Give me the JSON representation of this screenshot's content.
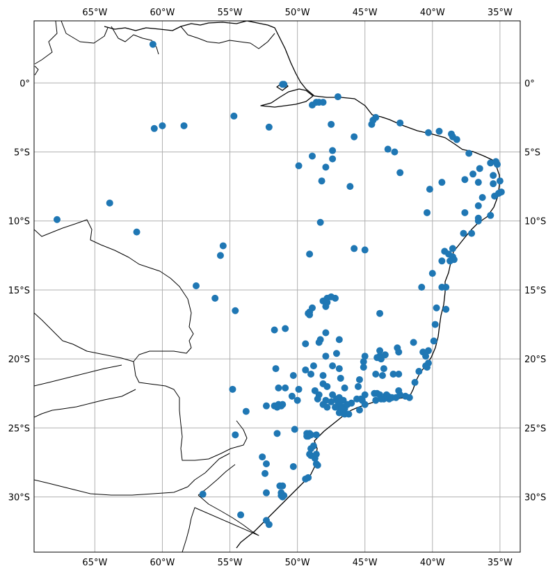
{
  "chart_data": {
    "type": "scatter",
    "projection": "PlateCarree",
    "extent": {
      "lon": [
        -69.5,
        -33.5
      ],
      "lat": [
        -34,
        4.5
      ]
    },
    "gridlines": true,
    "marker_color": "#1f77b4",
    "lon_ticks": [
      {
        "value": -65,
        "label": "65°W"
      },
      {
        "value": -60,
        "label": "60°W"
      },
      {
        "value": -55,
        "label": "55°W"
      },
      {
        "value": -50,
        "label": "50°W"
      },
      {
        "value": -45,
        "label": "45°W"
      },
      {
        "value": -40,
        "label": "40°W"
      },
      {
        "value": -35,
        "label": "35°W"
      }
    ],
    "lat_ticks": [
      {
        "value": 0,
        "label": "0°"
      },
      {
        "value": -5,
        "label": "5°S"
      },
      {
        "value": -10,
        "label": "10°S"
      },
      {
        "value": -15,
        "label": "15°S"
      },
      {
        "value": -20,
        "label": "20°S"
      },
      {
        "value": -25,
        "label": "25°S"
      },
      {
        "value": -30,
        "label": "30°S"
      }
    ],
    "points": [
      [
        -60.7,
        2.8
      ],
      [
        -60.6,
        -3.3
      ],
      [
        -60.0,
        -3.1
      ],
      [
        -58.4,
        -3.1
      ],
      [
        -54.7,
        -2.4
      ],
      [
        -52.1,
        -3.2
      ],
      [
        -51.1,
        -0.1
      ],
      [
        -51.0,
        -0.1
      ],
      [
        -48.9,
        -1.6
      ],
      [
        -48.6,
        -1.4
      ],
      [
        -48.4,
        -1.4
      ],
      [
        -48.1,
        -1.4
      ],
      [
        -47.0,
        -1.0
      ],
      [
        -47.5,
        -3.0
      ],
      [
        -45.8,
        -3.9
      ],
      [
        -44.2,
        -2.5
      ],
      [
        -44.4,
        -2.7
      ],
      [
        -44.5,
        -3.0
      ],
      [
        -42.4,
        -2.9
      ],
      [
        -40.3,
        -3.6
      ],
      [
        -39.5,
        -3.5
      ],
      [
        -38.6,
        -3.7
      ],
      [
        -38.5,
        -3.9
      ],
      [
        -38.2,
        -4.1
      ],
      [
        -43.3,
        -4.8
      ],
      [
        -42.8,
        -5.0
      ],
      [
        -47.4,
        -4.9
      ],
      [
        -47.4,
        -5.5
      ],
      [
        -48.9,
        -5.3
      ],
      [
        -49.9,
        -6.0
      ],
      [
        -47.9,
        -6.1
      ],
      [
        -48.2,
        -7.1
      ],
      [
        -46.1,
        -7.5
      ],
      [
        -42.4,
        -6.5
      ],
      [
        -40.2,
        -7.7
      ],
      [
        -39.3,
        -7.2
      ],
      [
        -37.3,
        -5.1
      ],
      [
        -36.5,
        -6.2
      ],
      [
        -37.0,
        -6.6
      ],
      [
        -36.6,
        -7.2
      ],
      [
        -37.6,
        -7.0
      ],
      [
        -35.7,
        -5.8
      ],
      [
        -35.3,
        -5.7
      ],
      [
        -35.2,
        -5.9
      ],
      [
        -35.5,
        -6.7
      ],
      [
        -35.5,
        -7.3
      ],
      [
        -35.0,
        -7.1
      ],
      [
        -34.9,
        -7.9
      ],
      [
        -35.1,
        -8.0
      ],
      [
        -35.4,
        -8.2
      ],
      [
        -36.3,
        -8.3
      ],
      [
        -36.6,
        -8.9
      ],
      [
        -37.6,
        -9.4
      ],
      [
        -35.7,
        -9.6
      ],
      [
        -36.6,
        -9.8
      ],
      [
        -36.6,
        -10.0
      ],
      [
        -37.1,
        -10.9
      ],
      [
        -37.7,
        -10.9
      ],
      [
        -40.4,
        -9.4
      ],
      [
        -67.8,
        -9.9
      ],
      [
        -63.9,
        -8.7
      ],
      [
        -61.9,
        -10.8
      ],
      [
        -48.3,
        -10.1
      ],
      [
        -45.8,
        -12.0
      ],
      [
        -45.0,
        -12.1
      ],
      [
        -38.5,
        -12.0
      ],
      [
        -38.8,
        -12.4
      ],
      [
        -38.5,
        -12.6
      ],
      [
        -38.4,
        -12.8
      ],
      [
        -38.7,
        -12.9
      ],
      [
        -39.1,
        -12.2
      ],
      [
        -39.3,
        -12.9
      ],
      [
        -55.5,
        -11.8
      ],
      [
        -55.7,
        -12.5
      ],
      [
        -49.1,
        -12.4
      ],
      [
        -57.5,
        -14.7
      ],
      [
        -56.1,
        -15.6
      ],
      [
        -54.6,
        -16.5
      ],
      [
        -40.0,
        -13.8
      ],
      [
        -40.8,
        -14.8
      ],
      [
        -39.3,
        -14.8
      ],
      [
        -39.0,
        -14.8
      ],
      [
        -39.0,
        -16.4
      ],
      [
        -39.7,
        -16.3
      ],
      [
        -47.8,
        -15.6
      ],
      [
        -48.1,
        -15.8
      ],
      [
        -47.5,
        -15.5
      ],
      [
        -47.2,
        -15.6
      ],
      [
        -47.8,
        -15.9
      ],
      [
        -48.9,
        -16.3
      ],
      [
        -49.2,
        -16.7
      ],
      [
        -49.1,
        -16.6
      ],
      [
        -49.1,
        -16.8
      ],
      [
        -47.9,
        -16.2
      ],
      [
        -43.9,
        -16.7
      ],
      [
        -51.7,
        -17.9
      ],
      [
        -50.9,
        -17.8
      ],
      [
        -47.9,
        -18.1
      ],
      [
        -48.3,
        -18.6
      ],
      [
        -48.4,
        -18.8
      ],
      [
        -46.9,
        -18.6
      ],
      [
        -49.4,
        -18.9
      ],
      [
        -39.8,
        -17.5
      ],
      [
        -39.9,
        -18.7
      ],
      [
        -41.4,
        -18.8
      ],
      [
        -40.3,
        -19.4
      ],
      [
        -40.7,
        -19.5
      ],
      [
        -40.5,
        -19.8
      ],
      [
        -40.3,
        -20.3
      ],
      [
        -40.4,
        -20.6
      ],
      [
        -40.5,
        -20.5
      ],
      [
        -42.6,
        -19.2
      ],
      [
        -42.5,
        -19.5
      ],
      [
        -43.9,
        -19.4
      ],
      [
        -43.9,
        -19.8
      ],
      [
        -44.1,
        -19.9
      ],
      [
        -43.8,
        -20.0
      ],
      [
        -43.5,
        -19.7
      ],
      [
        -45.0,
        -19.8
      ],
      [
        -45.1,
        -20.2
      ],
      [
        -47.9,
        -19.8
      ],
      [
        -47.1,
        -19.6
      ],
      [
        -48.8,
        -20.5
      ],
      [
        -47.4,
        -20.5
      ],
      [
        -46.9,
        -20.7
      ],
      [
        -49.4,
        -20.8
      ],
      [
        -51.6,
        -20.7
      ],
      [
        -49.0,
        -21.1
      ],
      [
        -48.1,
        -21.2
      ],
      [
        -48.1,
        -21.8
      ],
      [
        -47.8,
        -22.0
      ],
      [
        -46.8,
        -21.4
      ],
      [
        -45.4,
        -21.5
      ],
      [
        -45.1,
        -20.6
      ],
      [
        -44.2,
        -21.1
      ],
      [
        -42.9,
        -21.1
      ],
      [
        -42.5,
        -21.1
      ],
      [
        -43.7,
        -21.2
      ],
      [
        -43.6,
        -20.7
      ],
      [
        -41.3,
        -21.7
      ],
      [
        -41.0,
        -20.9
      ],
      [
        -45.5,
        -22.0
      ],
      [
        -46.5,
        -22.1
      ],
      [
        -47.4,
        -22.6
      ],
      [
        -47.1,
        -22.9
      ],
      [
        -46.9,
        -22.8
      ],
      [
        -47.0,
        -23.1
      ],
      [
        -46.6,
        -23.0
      ],
      [
        -46.6,
        -23.5
      ],
      [
        -46.5,
        -23.6
      ],
      [
        -46.7,
        -23.5
      ],
      [
        -46.8,
        -23.6
      ],
      [
        -46.9,
        -23.9
      ],
      [
        -46.7,
        -23.9
      ],
      [
        -46.5,
        -24.0
      ],
      [
        -46.2,
        -24.0
      ],
      [
        -46.3,
        -23.3
      ],
      [
        -46.9,
        -23.2
      ],
      [
        -47.2,
        -23.5
      ],
      [
        -47.5,
        -23.1
      ],
      [
        -47.9,
        -23.0
      ],
      [
        -48.4,
        -22.6
      ],
      [
        -48.5,
        -22.9
      ],
      [
        -48.7,
        -22.3
      ],
      [
        -49.9,
        -22.2
      ],
      [
        -50.0,
        -23.0
      ],
      [
        -50.4,
        -22.7
      ],
      [
        -50.9,
        -22.1
      ],
      [
        -51.4,
        -22.1
      ],
      [
        -50.3,
        -21.2
      ],
      [
        -51.7,
        -23.4
      ],
      [
        -51.4,
        -23.3
      ],
      [
        -51.2,
        -23.4
      ],
      [
        -51.1,
        -23.3
      ],
      [
        -51.5,
        -23.5
      ],
      [
        -52.3,
        -23.4
      ],
      [
        -53.8,
        -23.8
      ],
      [
        -54.8,
        -22.2
      ],
      [
        -47.8,
        -23.5
      ],
      [
        -48.1,
        -23.3
      ],
      [
        -46.0,
        -23.2
      ],
      [
        -45.6,
        -22.9
      ],
      [
        -45.3,
        -22.9
      ],
      [
        -45.2,
        -23.0
      ],
      [
        -45.0,
        -22.6
      ],
      [
        -44.3,
        -22.5
      ],
      [
        -44.1,
        -22.5
      ],
      [
        -43.9,
        -22.6
      ],
      [
        -43.4,
        -22.6
      ],
      [
        -43.2,
        -22.9
      ],
      [
        -43.1,
        -22.8
      ],
      [
        -43.3,
        -22.7
      ],
      [
        -43.0,
        -22.8
      ],
      [
        -42.7,
        -22.8
      ],
      [
        -42.5,
        -22.3
      ],
      [
        -42.0,
        -22.7
      ],
      [
        -41.7,
        -22.8
      ],
      [
        -42.4,
        -22.6
      ],
      [
        -44.2,
        -23.0
      ],
      [
        -43.6,
        -22.9
      ],
      [
        -43.8,
        -22.9
      ],
      [
        -45.0,
        -23.3
      ],
      [
        -45.4,
        -23.7
      ],
      [
        -49.3,
        -25.4
      ],
      [
        -49.1,
        -25.4
      ],
      [
        -49.2,
        -25.6
      ],
      [
        -49.0,
        -25.5
      ],
      [
        -48.6,
        -25.5
      ],
      [
        -49.3,
        -25.6
      ],
      [
        -50.2,
        -25.1
      ],
      [
        -51.5,
        -25.4
      ],
      [
        -54.6,
        -25.5
      ],
      [
        -49.0,
        -26.5
      ],
      [
        -48.8,
        -26.3
      ],
      [
        -48.6,
        -26.9
      ],
      [
        -48.7,
        -27.2
      ],
      [
        -48.6,
        -27.6
      ],
      [
        -48.5,
        -27.7
      ],
      [
        -49.0,
        -27.0
      ],
      [
        -49.1,
        -26.9
      ],
      [
        -50.3,
        -27.8
      ],
      [
        -52.6,
        -27.1
      ],
      [
        -52.3,
        -27.6
      ],
      [
        -52.4,
        -28.3
      ],
      [
        -49.4,
        -28.7
      ],
      [
        -49.2,
        -28.6
      ],
      [
        -51.3,
        -29.2
      ],
      [
        -51.1,
        -29.2
      ],
      [
        -51.2,
        -29.7
      ],
      [
        -51.1,
        -30.0
      ],
      [
        -51.2,
        -29.9
      ],
      [
        -51.0,
        -29.9
      ],
      [
        -52.3,
        -29.7
      ],
      [
        -57.0,
        -29.8
      ],
      [
        -54.2,
        -31.3
      ],
      [
        -52.3,
        -31.7
      ],
      [
        -52.1,
        -32.0
      ]
    ]
  }
}
